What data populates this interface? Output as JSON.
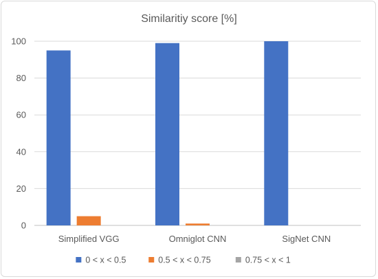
{
  "chart_data": {
    "type": "bar",
    "title": "Similaritiy score [%]",
    "xlabel": "",
    "ylabel": "",
    "categories": [
      "Simplified VGG",
      "Omniglot CNN",
      "SigNet CNN"
    ],
    "series": [
      {
        "name": "0 < x < 0.5",
        "color": "#4472c4",
        "values": [
          95,
          99,
          100
        ]
      },
      {
        "name": "0.5 < x < 0.75",
        "color": "#ed7d31",
        "values": [
          5,
          1,
          0
        ]
      },
      {
        "name": "0.75 < x < 1",
        "color": "#a5a5a5",
        "values": [
          0,
          0,
          0
        ]
      }
    ],
    "ylim": [
      0,
      100
    ],
    "yticks": [
      "0",
      "20",
      "40",
      "60",
      "80",
      "100"
    ],
    "grid": true,
    "legend": "bottom"
  }
}
